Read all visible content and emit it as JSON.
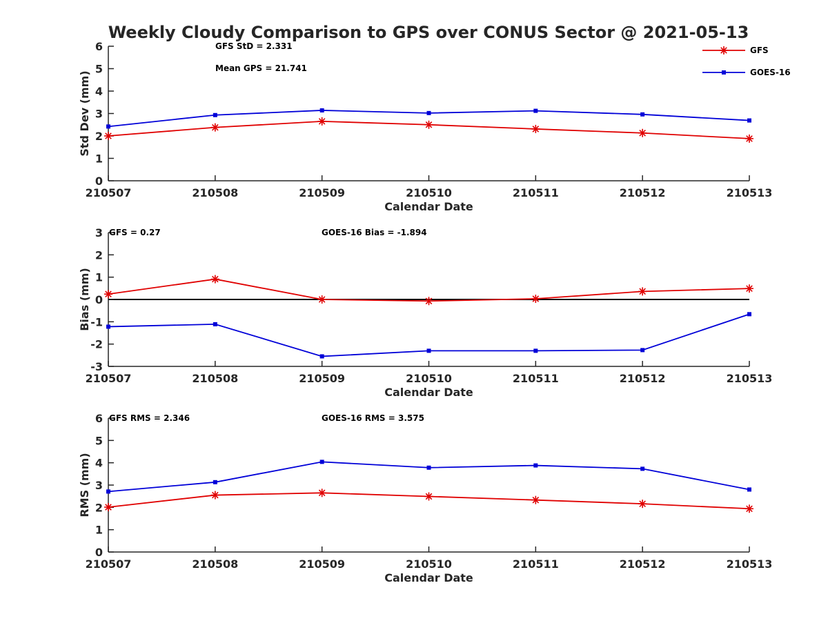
{
  "title": "Weekly Cloudy Comparison to GPS over CONUS Sector @ 2021-05-13",
  "colors": {
    "gfs": "#e00000",
    "goes": "#0000d8",
    "axis": "#262626",
    "zero_line": "#000000"
  },
  "legend": {
    "position": "top-right",
    "entries": [
      "GFS",
      "GOES-16"
    ]
  },
  "chart_data": [
    {
      "type": "line",
      "categories": [
        "210507",
        "210508",
        "210509",
        "210510",
        "210511",
        "210512",
        "210513"
      ],
      "xlabel": "Calendar Date",
      "ylabel": "Std Dev (mm)",
      "ylim": [
        0,
        6
      ],
      "yticks": [
        "0",
        "1",
        "2",
        "3",
        "4",
        "5",
        "6"
      ],
      "series": [
        {
          "name": "GFS",
          "values": [
            2.0,
            2.38,
            2.65,
            2.5,
            2.31,
            2.13,
            1.88
          ]
        },
        {
          "name": "GOES-16",
          "values": [
            2.42,
            2.93,
            3.14,
            3.02,
            3.12,
            2.96,
            2.69
          ]
        }
      ],
      "annotations": [
        "GFS StD = 2.331",
        "Mean GPS = 21.741"
      ]
    },
    {
      "type": "line",
      "categories": [
        "210507",
        "210508",
        "210509",
        "210510",
        "210511",
        "210512",
        "210513"
      ],
      "xlabel": "Calendar Date",
      "ylabel": "Bias (mm)",
      "ylim": [
        -3,
        3
      ],
      "yticks": [
        "-3",
        "-2",
        "-1",
        "0",
        "1",
        "2",
        "3"
      ],
      "zero_line": 0,
      "series": [
        {
          "name": "GFS",
          "values": [
            0.24,
            0.91,
            0.0,
            -0.07,
            0.03,
            0.36,
            0.49
          ]
        },
        {
          "name": "GOES-16",
          "values": [
            -1.22,
            -1.11,
            -2.55,
            -2.3,
            -2.3,
            -2.27,
            -0.66
          ]
        }
      ],
      "annotations": [
        "GFS = 0.27",
        "GOES-16 Bias  = -1.894"
      ]
    },
    {
      "type": "line",
      "categories": [
        "210507",
        "210508",
        "210509",
        "210510",
        "210511",
        "210512",
        "210513"
      ],
      "xlabel": "Calendar Date",
      "ylabel": "RMS (mm)",
      "ylim": [
        0,
        6
      ],
      "yticks": [
        "0",
        "1",
        "2",
        "3",
        "4",
        "5",
        "6"
      ],
      "series": [
        {
          "name": "GFS",
          "values": [
            2.01,
            2.55,
            2.65,
            2.49,
            2.33,
            2.16,
            1.94
          ]
        },
        {
          "name": "GOES-16",
          "values": [
            2.71,
            3.13,
            4.04,
            3.78,
            3.88,
            3.73,
            2.8
          ]
        }
      ],
      "annotations": [
        "GFS RMS = 2.346",
        "GOES-16 RMS = 3.575"
      ]
    }
  ]
}
